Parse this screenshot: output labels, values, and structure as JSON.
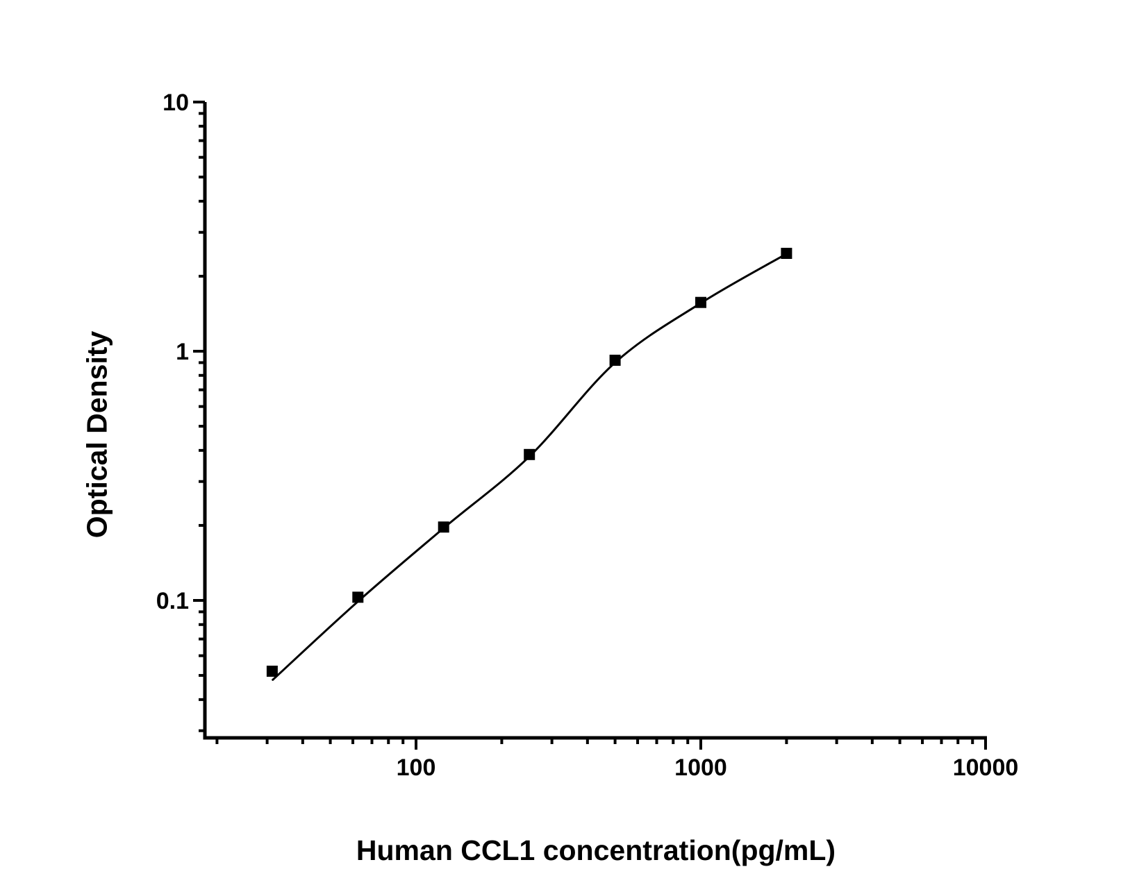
{
  "figure": {
    "background": "#ffffff",
    "ink_color": "#000000"
  },
  "chart_data": {
    "type": "scatter",
    "title": "",
    "xlabel": "Human CCL1 concentration(pg/mL)",
    "ylabel": "Optical Density",
    "x_scale": "log",
    "y_scale": "log",
    "x_range": [
      18,
      10000
    ],
    "y_range": [
      0.028,
      10
    ],
    "grid": false,
    "legend": false,
    "x_ticks": {
      "major": [
        {
          "value": 100,
          "label": "100"
        },
        {
          "value": 1000,
          "label": "1000"
        },
        {
          "value": 10000,
          "label": "10000"
        }
      ],
      "minor": [
        20,
        30,
        40,
        50,
        60,
        70,
        80,
        90,
        200,
        300,
        400,
        500,
        600,
        700,
        800,
        900,
        2000,
        3000,
        4000,
        5000,
        6000,
        7000,
        8000,
        9000
      ]
    },
    "y_ticks": {
      "major": [
        {
          "value": 10,
          "label": "10"
        },
        {
          "value": 1,
          "label": "1"
        },
        {
          "value": 0.1,
          "label": "0.1"
        }
      ],
      "minor": [
        9,
        8,
        7,
        6,
        5,
        4,
        3,
        2,
        0.9,
        0.8,
        0.7,
        0.6,
        0.5,
        0.4,
        0.3,
        0.2,
        0.09,
        0.08,
        0.07,
        0.06,
        0.05,
        0.04,
        0.03
      ]
    },
    "series": [
      {
        "name": "standards",
        "marker": "square",
        "marker_size_px": 16,
        "color": "#000000",
        "points": [
          {
            "x": 31.25,
            "y": 0.052
          },
          {
            "x": 62.5,
            "y": 0.103
          },
          {
            "x": 125,
            "y": 0.197
          },
          {
            "x": 250,
            "y": 0.385
          },
          {
            "x": 500,
            "y": 0.92
          },
          {
            "x": 1000,
            "y": 1.57
          },
          {
            "x": 2000,
            "y": 2.47
          }
        ]
      }
    ],
    "fit_curve": {
      "name": "standard-curve-fit",
      "color": "#000000",
      "stroke_width": 3,
      "points": [
        {
          "x": 31.4,
          "y": 0.048
        },
        {
          "x": 62.5,
          "y": 0.099
        },
        {
          "x": 125,
          "y": 0.195
        },
        {
          "x": 250,
          "y": 0.378
        },
        {
          "x": 500,
          "y": 0.9
        },
        {
          "x": 1000,
          "y": 1.56
        },
        {
          "x": 2000,
          "y": 2.46
        }
      ]
    }
  }
}
